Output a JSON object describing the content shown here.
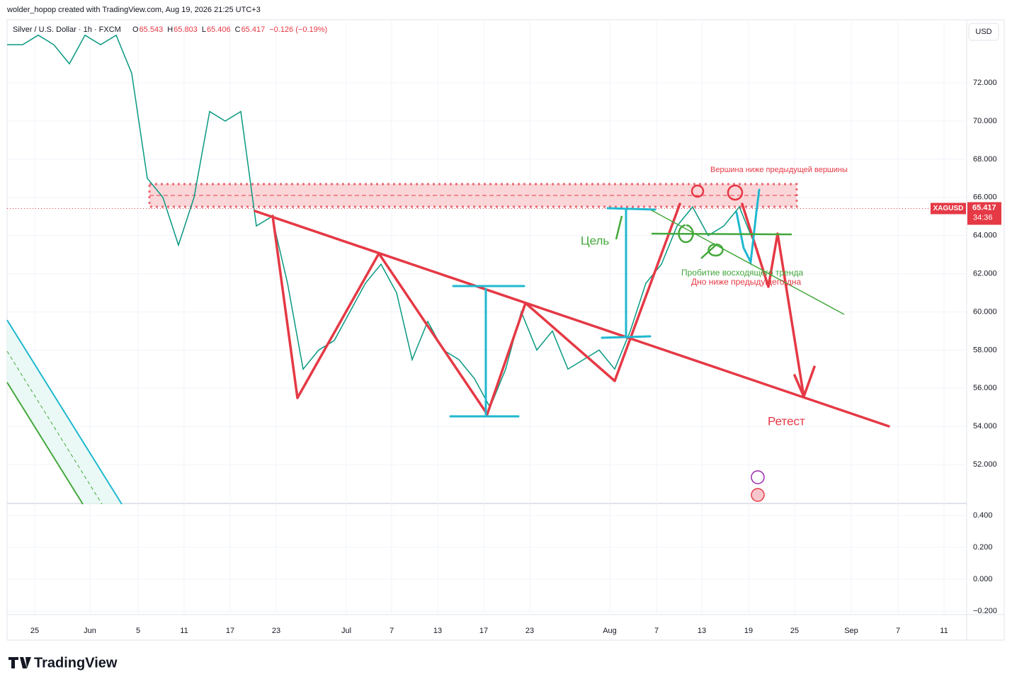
{
  "header": {
    "credit": "wolder_hopop created with TradingView.com, Aug 19, 2026 21:25 UTC+3"
  },
  "legend": {
    "symbol": "Silver / U.S. Dollar · 1h · FXCM",
    "ohlc": [
      {
        "label": "O",
        "value": 65.543
      },
      {
        "label": "H",
        "value": 65.803
      },
      {
        "label": "L",
        "value": 65.406
      },
      {
        "label": "C",
        "value": 65.417
      }
    ],
    "change": "−0.126 (−0.19%)"
  },
  "currency": "USD",
  "price_tag": {
    "ticker": "XAGUSD",
    "price": 65.417,
    "countdown": "34:36"
  },
  "price_axis": {
    "ylim": [
      50,
      75.23
    ],
    "ticks": [
      {
        "value": 52,
        "label": "52.000"
      },
      {
        "value": 54,
        "label": "54.000"
      },
      {
        "value": 56,
        "label": "56.000"
      },
      {
        "value": 58,
        "label": "58.000"
      },
      {
        "value": 60,
        "label": "60.000"
      },
      {
        "value": 62,
        "label": "62.000"
      },
      {
        "value": 64,
        "label": "64.000"
      },
      {
        "value": 66,
        "label": "66.000"
      },
      {
        "value": 68,
        "label": "68.000"
      },
      {
        "value": 70,
        "label": "70.000"
      },
      {
        "value": 72,
        "label": "72.000"
      }
    ]
  },
  "lower_axis": {
    "ylim": [
      -0.213,
      0.471
    ],
    "ticks": [
      {
        "value": 0.4,
        "label": "0.400"
      },
      {
        "value": 0.2,
        "label": "0.200"
      },
      {
        "value": 0,
        "label": "0.000"
      },
      {
        "value": -0.2,
        "label": "−0.200"
      }
    ]
  },
  "time_axis": {
    "labels": [
      "25",
      "Jun",
      "5",
      "11",
      "17",
      "23",
      "Jul",
      "7",
      "13",
      "17",
      "23",
      "Aug",
      "7",
      "13",
      "19",
      "25",
      "Sep",
      "7",
      "11"
    ]
  },
  "price_path": {
    "color": "#089981",
    "values": [
      74,
      74,
      74.5,
      74,
      73,
      74.5,
      74,
      74.5,
      72.5,
      67,
      66,
      63.5,
      66,
      70.5,
      70,
      70.5,
      64.5,
      65,
      61.5,
      57,
      58,
      58.5,
      60,
      61.5,
      62.5,
      61,
      57.5,
      59.5,
      58,
      57.5,
      56.5,
      55,
      57,
      60,
      58,
      59,
      57,
      57.5,
      58,
      57,
      59,
      61.5,
      62.5,
      64.5,
      65.5,
      64,
      64.5,
      65.5,
      63.5
    ]
  },
  "annotations": {
    "top_note": "Вершина ниже предыдущей вершины",
    "target": "Цель",
    "breakout": "Пробитие восходящего тренда",
    "low_note": "Дно ниже предыдущего дна",
    "retest": "Ретест"
  },
  "footer": {
    "logo": "TradingView"
  }
}
